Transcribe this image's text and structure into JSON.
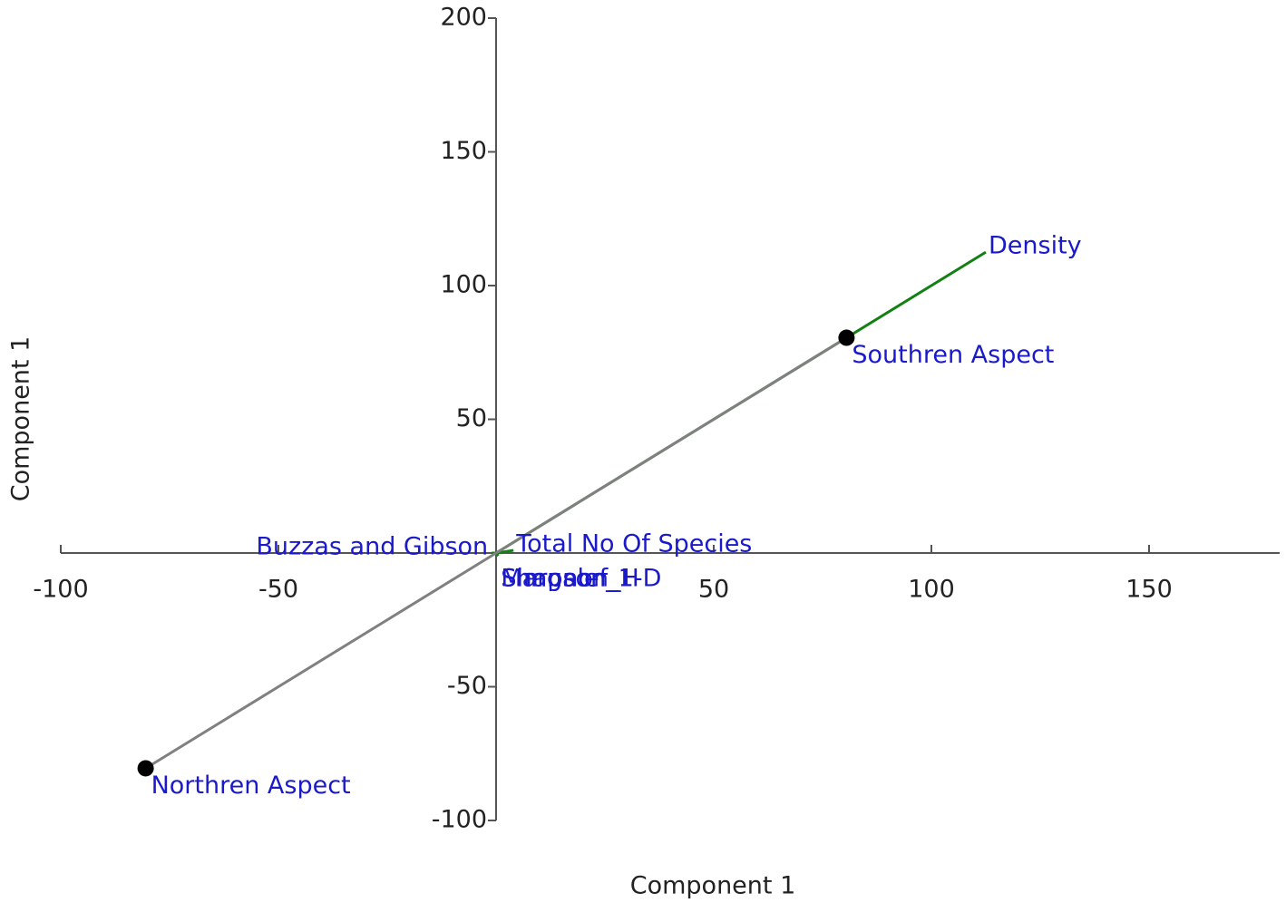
{
  "chart_data": {
    "type": "biplot",
    "xlabel": "Component 1",
    "ylabel": "Component 1",
    "xlim": [
      -100,
      180
    ],
    "ylim": [
      -100,
      200
    ],
    "xticks": [
      -100,
      -50,
      50,
      100,
      150
    ],
    "yticks": [
      -100,
      -50,
      50,
      100,
      150,
      200
    ],
    "points": {
      "labels": [
        "Southren Aspect",
        "Northren Aspect"
      ],
      "x": [
        80.5,
        -80.5
      ],
      "y": [
        80.5,
        -80.5
      ],
      "color": "#000000",
      "line_color": "#808080"
    },
    "vectors": {
      "labels": [
        "Density",
        "Total No Of Species",
        "Buzzas and Gibson",
        "Margalef",
        "Simpson_1-D",
        "Shannon_H"
      ],
      "x": [
        112.5,
        4,
        -1,
        0.5,
        0.5,
        0.5
      ],
      "y": [
        112.5,
        1,
        0,
        -1,
        -1,
        -1
      ],
      "color": "#138013"
    },
    "label_color": "#1a1acc"
  }
}
